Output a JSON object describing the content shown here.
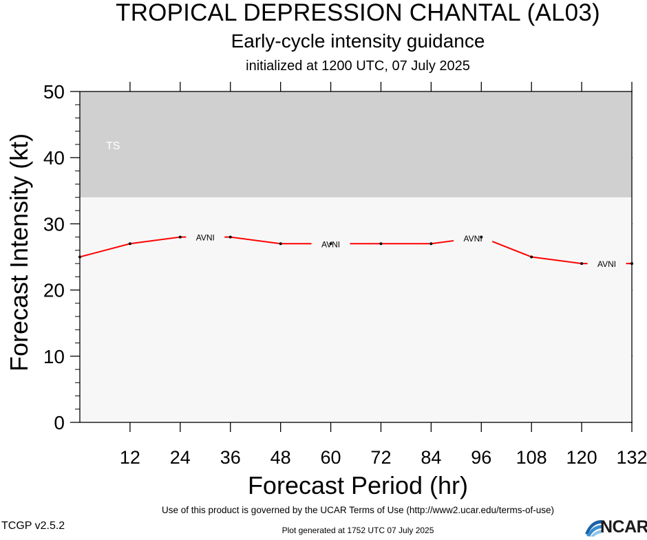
{
  "header": {
    "title": "TROPICAL DEPRESSION CHANTAL (AL03)",
    "subtitle": "Early-cycle intensity guidance",
    "initialized": "initialized at 1200 UTC, 07 July 2025"
  },
  "footer": {
    "terms": "Use of this product is governed by the UCAR Terms of Use (http://www2.ucar.edu/terms-of-use)",
    "version": "TCGP v2.5.2",
    "generated": "Plot generated at 1752 UTC   07 July 2025",
    "logo_text": "NCAR"
  },
  "chart_data": {
    "type": "line",
    "title": "TROPICAL DEPRESSION CHANTAL (AL03)",
    "xlabel": "Forecast Period (hr)",
    "ylabel": "Forecast Intensity (kt)",
    "xlim": [
      0,
      132
    ],
    "ylim": [
      0,
      50
    ],
    "xticks": [
      12,
      24,
      36,
      48,
      60,
      72,
      84,
      96,
      108,
      120,
      132
    ],
    "yticks": [
      0,
      10,
      20,
      30,
      40,
      50
    ],
    "grid": false,
    "bands": [
      {
        "label": "TS",
        "y_from": 34,
        "y_to": 50,
        "color": "#d0d0d0"
      }
    ],
    "plot_background": "#f7f7f7",
    "series": [
      {
        "name": "AVNI",
        "color": "#ff0000",
        "x": [
          0,
          12,
          24,
          36,
          48,
          60,
          72,
          84,
          96,
          108,
          120,
          132
        ],
        "y": [
          25,
          27,
          28,
          28,
          27,
          27,
          27,
          27,
          28,
          25,
          24,
          24
        ],
        "label_at_x": [
          30,
          60,
          94,
          126
        ]
      }
    ]
  }
}
